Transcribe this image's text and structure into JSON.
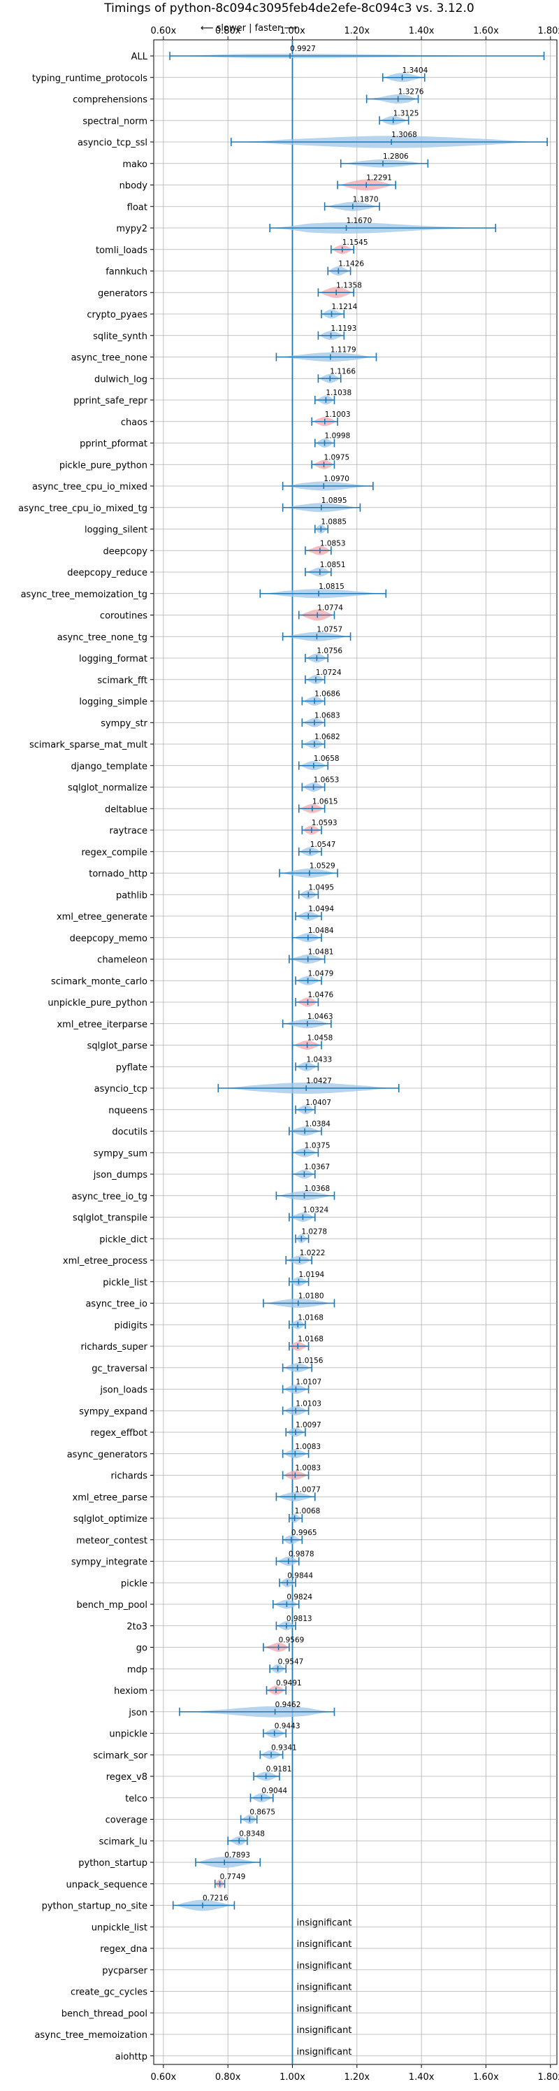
{
  "chart_data": {
    "type": "violin",
    "title": "Timings of python-8c094c3095feb4de2efe-8c094c3 vs. 3.12.0",
    "direction_hint": "⟵ slower | faster ⟶",
    "xlim": [
      0.57,
      1.82
    ],
    "x_ticks": [
      0.6,
      0.8,
      1.0,
      1.2,
      1.4,
      1.6,
      1.8
    ],
    "x_tick_labels": [
      "0.60x",
      "0.80x",
      "1.00x",
      "1.20x",
      "1.40x",
      "1.60x",
      "1.80x"
    ],
    "reference_line": 1.0,
    "grid": true,
    "colors": {
      "normal": "#9ec5e8",
      "regression": "#f4a6aa",
      "line": "#1f77b4"
    },
    "insignificant_text": "insignificant",
    "benchmarks": [
      {
        "name": "ALL",
        "value": 0.9927,
        "min": 0.62,
        "max": 1.78,
        "width": 0.22,
        "reg": false
      },
      {
        "name": "typing_runtime_protocols",
        "value": 1.3404,
        "min": 1.28,
        "max": 1.41,
        "width": 0.45,
        "reg": false
      },
      {
        "name": "comprehensions",
        "value": 1.3276,
        "min": 1.23,
        "max": 1.39,
        "width": 0.45,
        "reg": false
      },
      {
        "name": "spectral_norm",
        "value": 1.3125,
        "min": 1.27,
        "max": 1.36,
        "width": 0.45,
        "reg": false
      },
      {
        "name": "asyncio_tcp_ssl",
        "value": 1.3068,
        "min": 0.81,
        "max": 1.79,
        "width": 0.6,
        "reg": false
      },
      {
        "name": "mako",
        "value": 1.2806,
        "min": 1.15,
        "max": 1.42,
        "width": 0.4,
        "reg": false
      },
      {
        "name": "nbody",
        "value": 1.2291,
        "min": 1.14,
        "max": 1.32,
        "width": 0.55,
        "reg": true
      },
      {
        "name": "float",
        "value": 1.187,
        "min": 1.1,
        "max": 1.27,
        "width": 0.45,
        "reg": false
      },
      {
        "name": "mypy2",
        "value": 1.167,
        "min": 0.93,
        "max": 1.63,
        "width": 0.55,
        "reg": false
      },
      {
        "name": "tomli_loads",
        "value": 1.1545,
        "min": 1.12,
        "max": 1.19,
        "width": 0.45,
        "reg": true
      },
      {
        "name": "fannkuch",
        "value": 1.1426,
        "min": 1.11,
        "max": 1.18,
        "width": 0.45,
        "reg": false
      },
      {
        "name": "generators",
        "value": 1.1358,
        "min": 1.08,
        "max": 1.19,
        "width": 0.55,
        "reg": true
      },
      {
        "name": "crypto_pyaes",
        "value": 1.1214,
        "min": 1.09,
        "max": 1.16,
        "width": 0.45,
        "reg": false
      },
      {
        "name": "sqlite_synth",
        "value": 1.1193,
        "min": 1.08,
        "max": 1.16,
        "width": 0.45,
        "reg": false
      },
      {
        "name": "async_tree_none",
        "value": 1.1179,
        "min": 0.95,
        "max": 1.26,
        "width": 0.45,
        "reg": false
      },
      {
        "name": "dulwich_log",
        "value": 1.1166,
        "min": 1.08,
        "max": 1.15,
        "width": 0.45,
        "reg": false
      },
      {
        "name": "pprint_safe_repr",
        "value": 1.1038,
        "min": 1.07,
        "max": 1.13,
        "width": 0.45,
        "reg": false
      },
      {
        "name": "chaos",
        "value": 1.1003,
        "min": 1.06,
        "max": 1.14,
        "width": 0.45,
        "reg": true
      },
      {
        "name": "pprint_pformat",
        "value": 1.0998,
        "min": 1.07,
        "max": 1.13,
        "width": 0.45,
        "reg": false
      },
      {
        "name": "pickle_pure_python",
        "value": 1.0975,
        "min": 1.06,
        "max": 1.13,
        "width": 0.45,
        "reg": true
      },
      {
        "name": "async_tree_cpu_io_mixed",
        "value": 1.097,
        "min": 0.97,
        "max": 1.25,
        "width": 0.45,
        "reg": false
      },
      {
        "name": "async_tree_cpu_io_mixed_tg",
        "value": 1.0895,
        "min": 0.97,
        "max": 1.21,
        "width": 0.45,
        "reg": false
      },
      {
        "name": "logging_silent",
        "value": 1.0885,
        "min": 1.07,
        "max": 1.11,
        "width": 0.45,
        "reg": false
      },
      {
        "name": "deepcopy",
        "value": 1.0853,
        "min": 1.04,
        "max": 1.12,
        "width": 0.45,
        "reg": true
      },
      {
        "name": "deepcopy_reduce",
        "value": 1.0851,
        "min": 1.04,
        "max": 1.12,
        "width": 0.45,
        "reg": false
      },
      {
        "name": "async_tree_memoization_tg",
        "value": 1.0815,
        "min": 0.9,
        "max": 1.29,
        "width": 0.45,
        "reg": false
      },
      {
        "name": "coroutines",
        "value": 1.0774,
        "min": 1.02,
        "max": 1.13,
        "width": 0.55,
        "reg": true
      },
      {
        "name": "async_tree_none_tg",
        "value": 1.0757,
        "min": 0.97,
        "max": 1.18,
        "width": 0.45,
        "reg": false
      },
      {
        "name": "logging_format",
        "value": 1.0756,
        "min": 1.04,
        "max": 1.11,
        "width": 0.45,
        "reg": false
      },
      {
        "name": "scimark_fft",
        "value": 1.0724,
        "min": 1.04,
        "max": 1.1,
        "width": 0.45,
        "reg": false
      },
      {
        "name": "logging_simple",
        "value": 1.0686,
        "min": 1.03,
        "max": 1.1,
        "width": 0.45,
        "reg": false
      },
      {
        "name": "sympy_str",
        "value": 1.0683,
        "min": 1.03,
        "max": 1.1,
        "width": 0.45,
        "reg": false
      },
      {
        "name": "scimark_sparse_mat_mult",
        "value": 1.0682,
        "min": 1.03,
        "max": 1.1,
        "width": 0.45,
        "reg": false
      },
      {
        "name": "django_template",
        "value": 1.0658,
        "min": 1.02,
        "max": 1.11,
        "width": 0.45,
        "reg": false
      },
      {
        "name": "sqlglot_normalize",
        "value": 1.0653,
        "min": 1.03,
        "max": 1.1,
        "width": 0.45,
        "reg": false
      },
      {
        "name": "deltablue",
        "value": 1.0615,
        "min": 1.02,
        "max": 1.1,
        "width": 0.45,
        "reg": true
      },
      {
        "name": "raytrace",
        "value": 1.0593,
        "min": 1.03,
        "max": 1.09,
        "width": 0.45,
        "reg": true
      },
      {
        "name": "regex_compile",
        "value": 1.0547,
        "min": 1.02,
        "max": 1.09,
        "width": 0.45,
        "reg": false
      },
      {
        "name": "tornado_http",
        "value": 1.0529,
        "min": 0.96,
        "max": 1.14,
        "width": 0.45,
        "reg": false
      },
      {
        "name": "pathlib",
        "value": 1.0495,
        "min": 1.02,
        "max": 1.08,
        "width": 0.45,
        "reg": false
      },
      {
        "name": "xml_etree_generate",
        "value": 1.0494,
        "min": 1.01,
        "max": 1.09,
        "width": 0.45,
        "reg": false
      },
      {
        "name": "deepcopy_memo",
        "value": 1.0484,
        "min": 1.0,
        "max": 1.09,
        "width": 0.45,
        "reg": false
      },
      {
        "name": "chameleon",
        "value": 1.0481,
        "min": 0.99,
        "max": 1.1,
        "width": 0.45,
        "reg": false
      },
      {
        "name": "scimark_monte_carlo",
        "value": 1.0479,
        "min": 1.01,
        "max": 1.09,
        "width": 0.45,
        "reg": false
      },
      {
        "name": "unpickle_pure_python",
        "value": 1.0476,
        "min": 1.01,
        "max": 1.08,
        "width": 0.45,
        "reg": true
      },
      {
        "name": "xml_etree_iterparse",
        "value": 1.0463,
        "min": 0.97,
        "max": 1.12,
        "width": 0.45,
        "reg": false
      },
      {
        "name": "sqlglot_parse",
        "value": 1.0458,
        "min": 1.0,
        "max": 1.09,
        "width": 0.45,
        "reg": true
      },
      {
        "name": "pyflate",
        "value": 1.0433,
        "min": 1.01,
        "max": 1.08,
        "width": 0.45,
        "reg": false
      },
      {
        "name": "asyncio_tcp",
        "value": 1.0427,
        "min": 0.77,
        "max": 1.33,
        "width": 0.55,
        "reg": false
      },
      {
        "name": "nqueens",
        "value": 1.0407,
        "min": 1.01,
        "max": 1.07,
        "width": 0.45,
        "reg": false
      },
      {
        "name": "docutils",
        "value": 1.0384,
        "min": 0.99,
        "max": 1.09,
        "width": 0.45,
        "reg": false
      },
      {
        "name": "sympy_sum",
        "value": 1.0375,
        "min": 1.0,
        "max": 1.08,
        "width": 0.45,
        "reg": false
      },
      {
        "name": "json_dumps",
        "value": 1.0367,
        "min": 1.0,
        "max": 1.07,
        "width": 0.45,
        "reg": false
      },
      {
        "name": "async_tree_io_tg",
        "value": 1.0368,
        "min": 0.95,
        "max": 1.13,
        "width": 0.45,
        "reg": false
      },
      {
        "name": "sqlglot_transpile",
        "value": 1.0324,
        "min": 0.99,
        "max": 1.07,
        "width": 0.45,
        "reg": false
      },
      {
        "name": "pickle_dict",
        "value": 1.0278,
        "min": 1.01,
        "max": 1.05,
        "width": 0.45,
        "reg": false
      },
      {
        "name": "xml_etree_process",
        "value": 1.0222,
        "min": 0.98,
        "max": 1.06,
        "width": 0.45,
        "reg": false
      },
      {
        "name": "pickle_list",
        "value": 1.0194,
        "min": 0.99,
        "max": 1.05,
        "width": 0.45,
        "reg": false
      },
      {
        "name": "async_tree_io",
        "value": 1.018,
        "min": 0.91,
        "max": 1.13,
        "width": 0.45,
        "reg": false
      },
      {
        "name": "pidigits",
        "value": 1.0168,
        "min": 0.99,
        "max": 1.04,
        "width": 0.45,
        "reg": false
      },
      {
        "name": "richards_super",
        "value": 1.0168,
        "min": 0.99,
        "max": 1.05,
        "width": 0.45,
        "reg": true
      },
      {
        "name": "gc_traversal",
        "value": 1.0156,
        "min": 0.97,
        "max": 1.06,
        "width": 0.45,
        "reg": false
      },
      {
        "name": "json_loads",
        "value": 1.0107,
        "min": 0.97,
        "max": 1.05,
        "width": 0.45,
        "reg": false
      },
      {
        "name": "sympy_expand",
        "value": 1.0103,
        "min": 0.97,
        "max": 1.05,
        "width": 0.45,
        "reg": false
      },
      {
        "name": "regex_effbot",
        "value": 1.0097,
        "min": 0.98,
        "max": 1.04,
        "width": 0.45,
        "reg": false
      },
      {
        "name": "async_generators",
        "value": 1.0083,
        "min": 0.97,
        "max": 1.05,
        "width": 0.45,
        "reg": false
      },
      {
        "name": "richards",
        "value": 1.0083,
        "min": 0.97,
        "max": 1.05,
        "width": 0.45,
        "reg": true
      },
      {
        "name": "xml_etree_parse",
        "value": 1.0077,
        "min": 0.95,
        "max": 1.07,
        "width": 0.45,
        "reg": false
      },
      {
        "name": "sqlglot_optimize",
        "value": 1.0068,
        "min": 0.99,
        "max": 1.03,
        "width": 0.45,
        "reg": false
      },
      {
        "name": "meteor_contest",
        "value": 0.9965,
        "min": 0.97,
        "max": 1.03,
        "width": 0.45,
        "reg": false
      },
      {
        "name": "sympy_integrate",
        "value": 0.9878,
        "min": 0.95,
        "max": 1.02,
        "width": 0.45,
        "reg": false
      },
      {
        "name": "pickle",
        "value": 0.9844,
        "min": 0.96,
        "max": 1.01,
        "width": 0.45,
        "reg": false
      },
      {
        "name": "bench_mp_pool",
        "value": 0.9824,
        "min": 0.94,
        "max": 1.02,
        "width": 0.45,
        "reg": false
      },
      {
        "name": "2to3",
        "value": 0.9813,
        "min": 0.95,
        "max": 1.01,
        "width": 0.45,
        "reg": false
      },
      {
        "name": "go",
        "value": 0.9569,
        "min": 0.91,
        "max": 0.99,
        "width": 0.45,
        "reg": true
      },
      {
        "name": "mdp",
        "value": 0.9547,
        "min": 0.93,
        "max": 0.98,
        "width": 0.45,
        "reg": false
      },
      {
        "name": "hexiom",
        "value": 0.9491,
        "min": 0.92,
        "max": 0.98,
        "width": 0.45,
        "reg": true
      },
      {
        "name": "json",
        "value": 0.9462,
        "min": 0.65,
        "max": 1.13,
        "width": 0.55,
        "reg": false
      },
      {
        "name": "unpickle",
        "value": 0.9443,
        "min": 0.91,
        "max": 0.98,
        "width": 0.45,
        "reg": false
      },
      {
        "name": "scimark_sor",
        "value": 0.9341,
        "min": 0.9,
        "max": 0.97,
        "width": 0.45,
        "reg": false
      },
      {
        "name": "regex_v8",
        "value": 0.9181,
        "min": 0.88,
        "max": 0.96,
        "width": 0.45,
        "reg": false
      },
      {
        "name": "telco",
        "value": 0.9044,
        "min": 0.87,
        "max": 0.94,
        "width": 0.45,
        "reg": false
      },
      {
        "name": "coverage",
        "value": 0.8675,
        "min": 0.84,
        "max": 0.89,
        "width": 0.45,
        "reg": false
      },
      {
        "name": "scimark_lu",
        "value": 0.8348,
        "min": 0.8,
        "max": 0.86,
        "width": 0.45,
        "reg": false
      },
      {
        "name": "python_startup",
        "value": 0.7893,
        "min": 0.7,
        "max": 0.9,
        "width": 0.55,
        "reg": false
      },
      {
        "name": "unpack_sequence",
        "value": 0.7749,
        "min": 0.76,
        "max": 0.79,
        "width": 0.45,
        "reg": true
      },
      {
        "name": "python_startup_no_site",
        "value": 0.7216,
        "min": 0.63,
        "max": 0.82,
        "width": 0.55,
        "reg": false
      },
      {
        "name": "unpickle_list",
        "value": null
      },
      {
        "name": "regex_dna",
        "value": null
      },
      {
        "name": "pycparser",
        "value": null
      },
      {
        "name": "create_gc_cycles",
        "value": null
      },
      {
        "name": "bench_thread_pool",
        "value": null
      },
      {
        "name": "async_tree_memoization",
        "value": null
      },
      {
        "name": "aiohttp",
        "value": null
      }
    ]
  }
}
